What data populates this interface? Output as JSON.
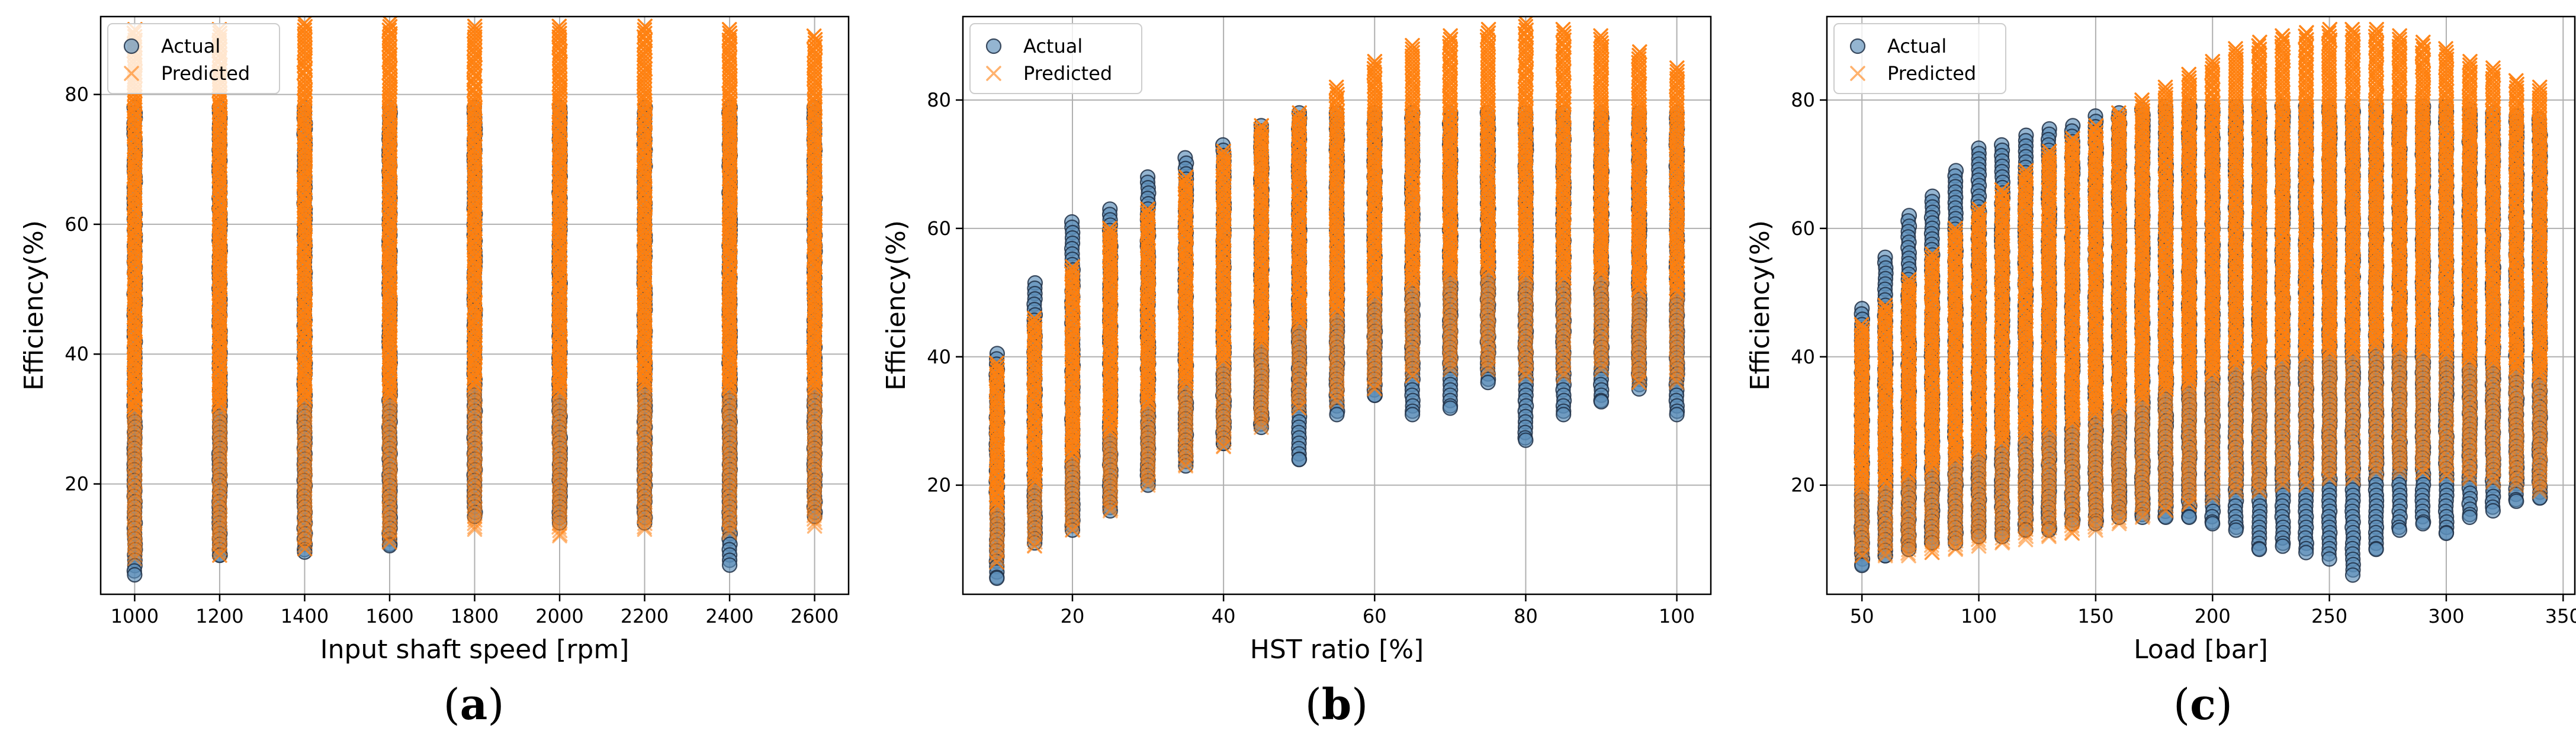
{
  "colors": {
    "actual_fill": "#5b8db8",
    "actual_edge": "#1f2f45",
    "predicted": "#ff7f0e",
    "grid": "#b0b0b0",
    "axis": "#000000"
  },
  "chart_data": [
    {
      "type": "scatter",
      "panel_label": "a",
      "xlabel": "Input shaft speed [rpm]",
      "ylabel": "Efficiency(%)",
      "xlim": [
        920,
        2680
      ],
      "ylim": [
        3,
        92
      ],
      "xticks": [
        1000,
        1200,
        1400,
        1600,
        1800,
        2000,
        2200,
        2400,
        2600
      ],
      "yticks": [
        20,
        40,
        60,
        80
      ],
      "grid": true,
      "legend_position": "upper-left",
      "series": [
        {
          "name": "Actual",
          "marker": "circle",
          "columns": [
            {
              "x": 1000,
              "min": 6,
              "max": 78
            },
            {
              "x": 1200,
              "min": 9,
              "max": 78
            },
            {
              "x": 1400,
              "min": 9.5,
              "max": 78
            },
            {
              "x": 1600,
              "min": 10.5,
              "max": 78
            },
            {
              "x": 1800,
              "min": 15,
              "max": 78
            },
            {
              "x": 2000,
              "min": 14,
              "max": 78
            },
            {
              "x": 2200,
              "min": 14,
              "max": 78
            },
            {
              "x": 2400,
              "min": 7.5,
              "max": 78
            },
            {
              "x": 2600,
              "min": 15,
              "max": 78
            }
          ]
        },
        {
          "name": "Predicted",
          "marker": "x",
          "columns": [
            {
              "x": 1000,
              "min": 8.5,
              "max": 90
            },
            {
              "x": 1200,
              "min": 9,
              "max": 90
            },
            {
              "x": 1400,
              "min": 10,
              "max": 91
            },
            {
              "x": 1600,
              "min": 11,
              "max": 91
            },
            {
              "x": 1800,
              "min": 13,
              "max": 90.5
            },
            {
              "x": 2000,
              "min": 12,
              "max": 90.5
            },
            {
              "x": 2200,
              "min": 13,
              "max": 90.5
            },
            {
              "x": 2400,
              "min": 12.5,
              "max": 90
            },
            {
              "x": 2600,
              "min": 13.5,
              "max": 89
            }
          ]
        }
      ]
    },
    {
      "type": "scatter",
      "panel_label": "b",
      "xlabel": "HST ratio [%]",
      "ylabel": "Efficiency(%)",
      "xlim": [
        5.5,
        104.5
      ],
      "ylim": [
        3,
        93
      ],
      "xticks": [
        20,
        40,
        60,
        80,
        100
      ],
      "yticks": [
        20,
        40,
        60,
        80
      ],
      "grid": true,
      "legend_position": "upper-left",
      "series": [
        {
          "name": "Actual",
          "marker": "circle",
          "columns": [
            {
              "x": 10,
              "min": 5.5,
              "max": 40.5
            },
            {
              "x": 15,
              "min": 11,
              "max": 51.5
            },
            {
              "x": 20,
              "min": 13,
              "max": 61
            },
            {
              "x": 25,
              "min": 16,
              "max": 63
            },
            {
              "x": 30,
              "min": 20,
              "max": 68
            },
            {
              "x": 35,
              "min": 23,
              "max": 71
            },
            {
              "x": 40,
              "min": 26.5,
              "max": 73
            },
            {
              "x": 45,
              "min": 29,
              "max": 76
            },
            {
              "x": 50,
              "min": 24,
              "max": 78
            },
            {
              "x": 55,
              "min": 31,
              "max": 78
            },
            {
              "x": 60,
              "min": 34,
              "max": 78
            },
            {
              "x": 65,
              "min": 31,
              "max": 78
            },
            {
              "x": 70,
              "min": 32,
              "max": 78
            },
            {
              "x": 75,
              "min": 36,
              "max": 78
            },
            {
              "x": 80,
              "min": 27,
              "max": 78
            },
            {
              "x": 85,
              "min": 31,
              "max": 78
            },
            {
              "x": 90,
              "min": 33,
              "max": 78
            },
            {
              "x": 95,
              "min": 35,
              "max": 78
            },
            {
              "x": 100,
              "min": 31,
              "max": 78
            }
          ]
        },
        {
          "name": "Predicted",
          "marker": "x",
          "columns": [
            {
              "x": 10,
              "min": 8,
              "max": 39
            },
            {
              "x": 15,
              "min": 10.5,
              "max": 46
            },
            {
              "x": 20,
              "min": 13,
              "max": 54
            },
            {
              "x": 25,
              "min": 16,
              "max": 60
            },
            {
              "x": 30,
              "min": 20,
              "max": 63
            },
            {
              "x": 35,
              "min": 23,
              "max": 68
            },
            {
              "x": 40,
              "min": 26,
              "max": 72
            },
            {
              "x": 45,
              "min": 29,
              "max": 76
            },
            {
              "x": 50,
              "min": 32,
              "max": 78
            },
            {
              "x": 55,
              "min": 33,
              "max": 82
            },
            {
              "x": 60,
              "min": 35,
              "max": 86
            },
            {
              "x": 65,
              "min": 37,
              "max": 88.5
            },
            {
              "x": 70,
              "min": 38,
              "max": 90
            },
            {
              "x": 75,
              "min": 38,
              "max": 91
            },
            {
              "x": 80,
              "min": 37,
              "max": 92
            },
            {
              "x": 85,
              "min": 37,
              "max": 91
            },
            {
              "x": 90,
              "min": 38,
              "max": 90
            },
            {
              "x": 95,
              "min": 36,
              "max": 87.5
            },
            {
              "x": 100,
              "min": 36,
              "max": 85
            }
          ]
        }
      ]
    },
    {
      "type": "scatter",
      "panel_label": "c",
      "xlabel": "Load [bar]",
      "ylabel": "Efficiency(%)",
      "xlim": [
        35,
        355
      ],
      "ylim": [
        3,
        93
      ],
      "xticks": [
        50,
        100,
        150,
        200,
        250,
        300,
        350
      ],
      "yticks": [
        20,
        40,
        60,
        80
      ],
      "grid": true,
      "legend_position": "upper-left",
      "series": [
        {
          "name": "Actual",
          "marker": "circle",
          "columns": [
            {
              "x": 50,
              "min": 7.5,
              "max": 47.5
            },
            {
              "x": 60,
              "min": 9,
              "max": 55.5
            },
            {
              "x": 70,
              "min": 10,
              "max": 62
            },
            {
              "x": 80,
              "min": 11,
              "max": 65
            },
            {
              "x": 90,
              "min": 11,
              "max": 69
            },
            {
              "x": 100,
              "min": 12,
              "max": 72.5
            },
            {
              "x": 110,
              "min": 12,
              "max": 73
            },
            {
              "x": 120,
              "min": 13,
              "max": 74.5
            },
            {
              "x": 130,
              "min": 13,
              "max": 75.5
            },
            {
              "x": 140,
              "min": 14,
              "max": 76
            },
            {
              "x": 150,
              "min": 14,
              "max": 77.5
            },
            {
              "x": 160,
              "min": 15,
              "max": 78
            },
            {
              "x": 170,
              "min": 15,
              "max": 78.5
            },
            {
              "x": 180,
              "min": 15,
              "max": 79
            },
            {
              "x": 190,
              "min": 15,
              "max": 79
            },
            {
              "x": 200,
              "min": 14,
              "max": 79
            },
            {
              "x": 210,
              "min": 13,
              "max": 79
            },
            {
              "x": 220,
              "min": 10,
              "max": 79
            },
            {
              "x": 230,
              "min": 10.5,
              "max": 79
            },
            {
              "x": 240,
              "min": 9.5,
              "max": 79
            },
            {
              "x": 250,
              "min": 8.5,
              "max": 79
            },
            {
              "x": 260,
              "min": 6,
              "max": 79
            },
            {
              "x": 270,
              "min": 10,
              "max": 79
            },
            {
              "x": 280,
              "min": 13,
              "max": 79
            },
            {
              "x": 290,
              "min": 14,
              "max": 79
            },
            {
              "x": 300,
              "min": 12.5,
              "max": 79
            },
            {
              "x": 310,
              "min": 15,
              "max": 78.5
            },
            {
              "x": 320,
              "min": 16,
              "max": 78
            },
            {
              "x": 330,
              "min": 17.5,
              "max": 77.5
            },
            {
              "x": 340,
              "min": 18,
              "max": 77
            }
          ]
        },
        {
          "name": "Predicted",
          "marker": "x",
          "columns": [
            {
              "x": 50,
              "min": 9,
              "max": 45
            },
            {
              "x": 60,
              "min": 9,
              "max": 48
            },
            {
              "x": 70,
              "min": 9,
              "max": 52
            },
            {
              "x": 80,
              "min": 9.5,
              "max": 56
            },
            {
              "x": 90,
              "min": 10,
              "max": 60
            },
            {
              "x": 100,
              "min": 10.5,
              "max": 63
            },
            {
              "x": 110,
              "min": 11,
              "max": 66
            },
            {
              "x": 120,
              "min": 11.5,
              "max": 69
            },
            {
              "x": 130,
              "min": 12,
              "max": 72
            },
            {
              "x": 140,
              "min": 12.5,
              "max": 74
            },
            {
              "x": 150,
              "min": 13,
              "max": 76
            },
            {
              "x": 160,
              "min": 14,
              "max": 78
            },
            {
              "x": 170,
              "min": 15,
              "max": 80
            },
            {
              "x": 180,
              "min": 16,
              "max": 82
            },
            {
              "x": 190,
              "min": 17,
              "max": 84
            },
            {
              "x": 200,
              "min": 18,
              "max": 86
            },
            {
              "x": 210,
              "min": 19,
              "max": 88
            },
            {
              "x": 220,
              "min": 19,
              "max": 89
            },
            {
              "x": 230,
              "min": 20,
              "max": 90
            },
            {
              "x": 240,
              "min": 20,
              "max": 90.5
            },
            {
              "x": 250,
              "min": 21,
              "max": 91
            },
            {
              "x": 260,
              "min": 21,
              "max": 91
            },
            {
              "x": 270,
              "min": 22,
              "max": 91
            },
            {
              "x": 280,
              "min": 22,
              "max": 90
            },
            {
              "x": 290,
              "min": 22,
              "max": 89
            },
            {
              "x": 300,
              "min": 21.5,
              "max": 88
            },
            {
              "x": 310,
              "min": 21,
              "max": 86
            },
            {
              "x": 320,
              "min": 20.5,
              "max": 85
            },
            {
              "x": 330,
              "min": 20,
              "max": 83
            },
            {
              "x": 340,
              "min": 19,
              "max": 82
            }
          ]
        }
      ]
    }
  ]
}
